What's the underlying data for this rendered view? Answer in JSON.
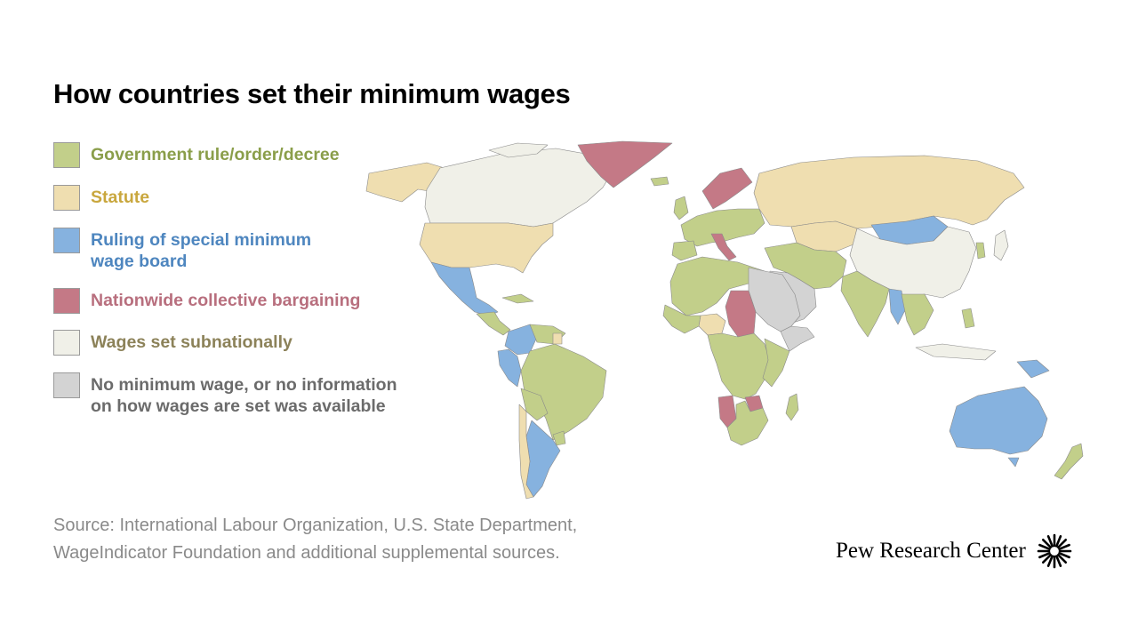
{
  "title": "How countries set their minimum wages",
  "legend": [
    {
      "id": "government",
      "lines": [
        "Government rule/order/decree"
      ],
      "color": "#c2cf8a",
      "text_color": "#8a9e4a"
    },
    {
      "id": "statute",
      "lines": [
        "Statute"
      ],
      "color": "#efdeb0",
      "text_color": "#c9a73e"
    },
    {
      "id": "wage-board",
      "lines": [
        "Ruling of special minimum",
        "wage board"
      ],
      "color": "#86b2df",
      "text_color": "#4e86bf"
    },
    {
      "id": "collective-bargaining",
      "lines": [
        "Nationwide collective bargaining"
      ],
      "color": "#c47986",
      "text_color": "#b86f7e"
    },
    {
      "id": "subnational",
      "lines": [
        "Wages set subnationally"
      ],
      "color": "#f0f0e8",
      "text_color": "#8c8259"
    },
    {
      "id": "no-minimum",
      "lines": [
        "No minimum wage, or no information",
        "on how wages are set was available"
      ],
      "color": "#d3d3d3",
      "text_color": "#6b6b6b"
    }
  ],
  "source": {
    "lines": [
      "Source: International Labour Organization, U.S. State Department,",
      "WageIndicator Foundation and additional supplemental sources."
    ]
  },
  "logo": {
    "text": "Pew Research Center",
    "icon": "pew-sunburst-icon"
  }
}
